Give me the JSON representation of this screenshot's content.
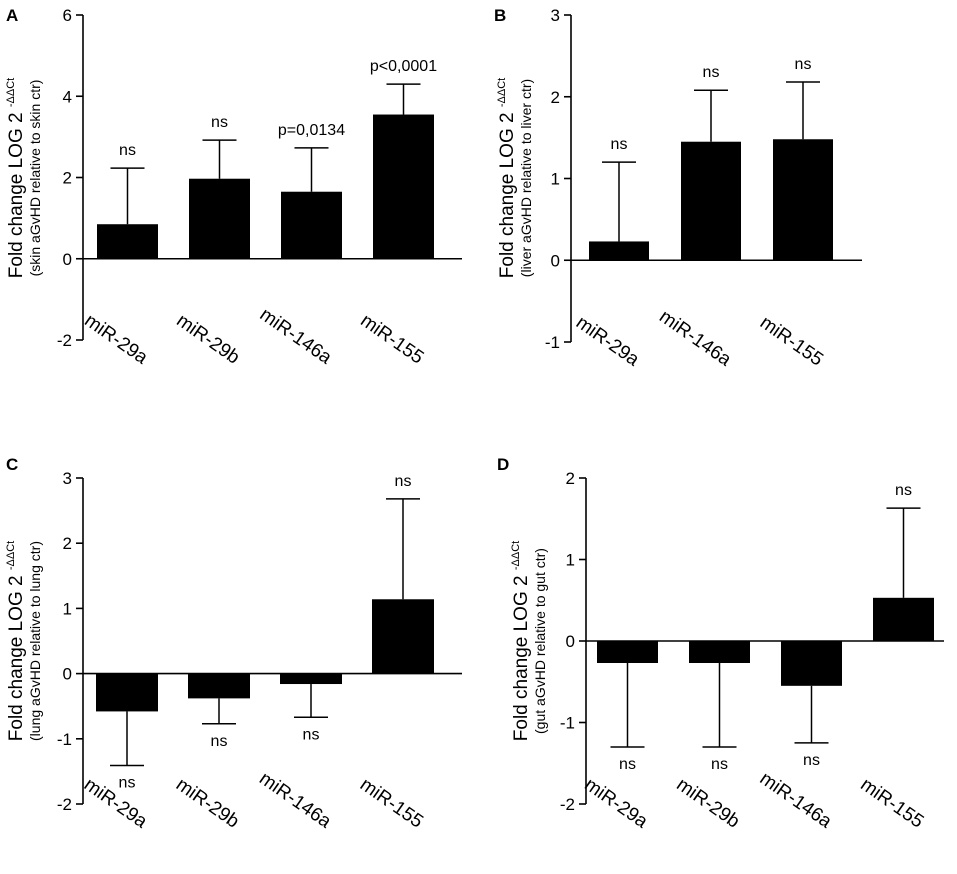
{
  "chart_data": [
    {
      "type": "bar",
      "panel": "A",
      "ylabel": "Fold change LOG 2",
      "ylabel_superscript": "-ΔΔCt",
      "ylabel_sub": "(skin aGvHD relative to skin ctr)",
      "ylim": [
        -2,
        6
      ],
      "yticks": [
        -2,
        0,
        2,
        4,
        6
      ],
      "categories": [
        "miR-29a",
        "miR-29b",
        "miR-146a",
        "miR-155"
      ],
      "values": [
        0.85,
        1.97,
        1.65,
        3.55
      ],
      "errors": [
        1.38,
        0.95,
        1.08,
        0.75
      ],
      "annotations": [
        "ns",
        "ns",
        "p=0,0134",
        "p<0,0001"
      ]
    },
    {
      "type": "bar",
      "panel": "B",
      "ylabel": "Fold change LOG 2",
      "ylabel_superscript": "-ΔΔCt",
      "ylabel_sub": "(liver aGvHD relative to liver ctr)",
      "ylim": [
        -1,
        3
      ],
      "yticks": [
        -1,
        0,
        1,
        2,
        3
      ],
      "categories": [
        "miR-29a",
        "miR-146a",
        "miR-155"
      ],
      "values": [
        0.23,
        1.45,
        1.48
      ],
      "errors": [
        0.97,
        0.63,
        0.7
      ],
      "annotations": [
        "ns",
        "ns",
        "ns"
      ]
    },
    {
      "type": "bar",
      "panel": "C",
      "ylabel": "Fold change LOG 2",
      "ylabel_superscript": "-ΔΔCt",
      "ylabel_sub": "(lung aGvHD relative to lung ctr)",
      "ylim": [
        -2,
        3
      ],
      "yticks": [
        -2,
        -1,
        0,
        1,
        2,
        3
      ],
      "categories": [
        "miR-29a",
        "miR-29b",
        "miR-146a",
        "miR-155"
      ],
      "values": [
        -0.58,
        -0.38,
        -0.16,
        1.14
      ],
      "errors": [
        0.83,
        0.39,
        0.51,
        1.54
      ],
      "annotations": [
        "ns",
        "ns",
        "ns",
        "ns"
      ]
    },
    {
      "type": "bar",
      "panel": "D",
      "ylabel": "Fold change LOG 2",
      "ylabel_superscript": "-ΔΔCt",
      "ylabel_sub": "(gut aGvHD relative to gut ctr)",
      "ylim": [
        -2,
        2
      ],
      "yticks": [
        -2,
        -1,
        0,
        1,
        2
      ],
      "categories": [
        "miR-29a",
        "miR-29b",
        "miR-146a",
        "miR-155"
      ],
      "values": [
        -0.27,
        -0.27,
        -0.55,
        0.53
      ],
      "errors": [
        1.03,
        1.03,
        0.7,
        1.1
      ],
      "annotations": [
        "ns",
        "ns",
        "ns",
        "ns"
      ]
    }
  ]
}
